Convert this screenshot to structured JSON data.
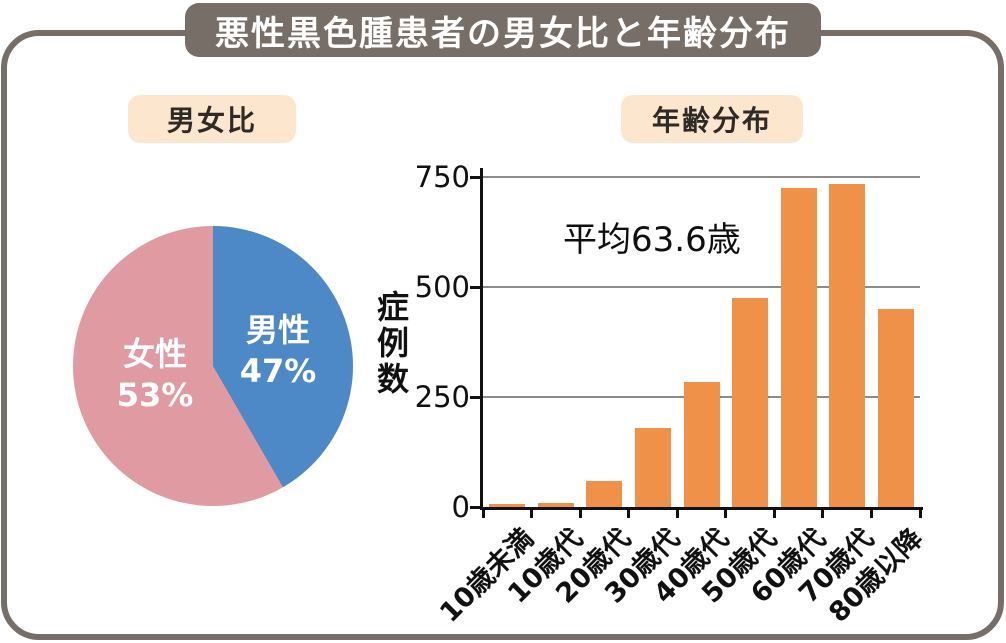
{
  "page": {
    "title": "悪性黒色腫患者の男女比と年齢分布"
  },
  "sections": [
    {
      "id": "gender-ratio",
      "label": "男女比"
    },
    {
      "id": "age-distribution",
      "label": "年齢分布"
    }
  ],
  "chart_data": [
    {
      "type": "pie",
      "title": "男女比",
      "start_angle": "12-oclock",
      "direction": "clockwise",
      "slices": [
        {
          "label": "男性",
          "value": 47,
          "pct": "47%",
          "color": "#4d89c6"
        },
        {
          "label": "女性",
          "value": 53,
          "pct": "53%",
          "color": "#e09aa2"
        }
      ],
      "legend_position": "inside"
    },
    {
      "type": "bar",
      "title": "年齢分布",
      "categories": [
        "10歳未満",
        "10歳代",
        "20歳代",
        "30歳代",
        "40歳代",
        "50歳代",
        "60歳代",
        "70歳代",
        "80歳以降"
      ],
      "values": [
        3,
        8,
        60,
        180,
        285,
        475,
        725,
        735,
        450
      ],
      "xlabel": "",
      "ylabel": "症例数",
      "ylim": [
        0,
        750
      ],
      "yticks": [
        0,
        250,
        500,
        750
      ],
      "grid": true,
      "annotation": "平均63.6歳",
      "bar_color": "#f0914a"
    }
  ],
  "colors": {
    "frame": "#776e67",
    "title_bg": "#776e67",
    "title_text": "#ffffff",
    "section_label_bg": "#fce6cd",
    "section_label_text": "#2e2a27",
    "male_blue": "#4d89c6",
    "female_pink": "#e09aa2",
    "bar_orange": "#f0914a",
    "gridline": "#8c8c8c"
  }
}
